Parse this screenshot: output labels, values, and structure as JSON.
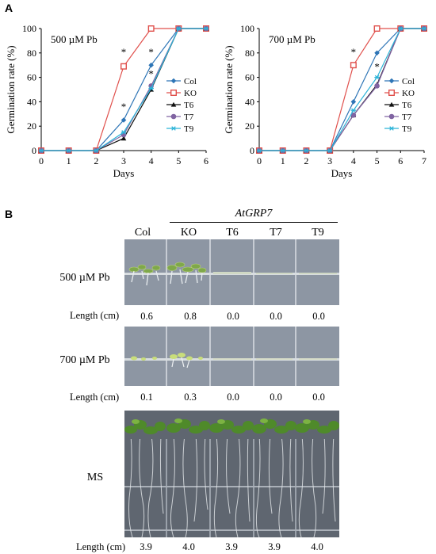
{
  "panel_a_label": "A",
  "panel_b_label": "B",
  "chart_data": [
    {
      "type": "line",
      "title": "500 µM Pb",
      "xlabel": "Days",
      "ylabel": "Germination rate (%)",
      "xlim": [
        0,
        6
      ],
      "ylim": [
        0,
        100
      ],
      "xticks": [
        "0",
        "1",
        "2",
        "3",
        "4",
        "5",
        "6"
      ],
      "yticks": [
        "0",
        "20",
        "40",
        "60",
        "80",
        "100"
      ],
      "legend_position": "right",
      "x": [
        0,
        1,
        2,
        3,
        4,
        5,
        6
      ],
      "series": [
        {
          "name": "Col",
          "values": [
            0,
            0,
            0,
            25,
            70,
            100,
            100
          ],
          "color": "#2e75b6",
          "marker": "diamond"
        },
        {
          "name": "KO",
          "values": [
            0,
            0,
            0,
            69,
            100,
            100,
            100
          ],
          "color": "#e0504c",
          "marker": "square"
        },
        {
          "name": "T6",
          "values": [
            0,
            0,
            0,
            10,
            50,
            100,
            100
          ],
          "color": "#111111",
          "marker": "triangle"
        },
        {
          "name": "T7",
          "values": [
            0,
            0,
            0,
            13,
            53,
            100,
            100
          ],
          "color": "#8064a2",
          "marker": "circle"
        },
        {
          "name": "T9",
          "values": [
            0,
            0,
            0,
            15,
            51,
            100,
            100
          ],
          "color": "#2bb3d8",
          "marker": "asterisk"
        }
      ],
      "annotations": [
        "*",
        "*",
        "*",
        "*"
      ]
    },
    {
      "type": "line",
      "title": "700 µM Pb",
      "xlabel": "Days",
      "ylabel": "Germination rate (%)",
      "xlim": [
        0,
        7
      ],
      "ylim": [
        0,
        100
      ],
      "xticks": [
        "0",
        "1",
        "2",
        "3",
        "4",
        "5",
        "6",
        "7"
      ],
      "yticks": [
        "0",
        "20",
        "40",
        "60",
        "80",
        "100"
      ],
      "legend_position": "right",
      "x": [
        0,
        1,
        2,
        3,
        4,
        5,
        6,
        7
      ],
      "series": [
        {
          "name": "Col",
          "values": [
            0,
            0,
            0,
            0,
            40,
            80,
            100,
            100
          ],
          "color": "#2e75b6",
          "marker": "diamond"
        },
        {
          "name": "KO",
          "values": [
            0,
            0,
            0,
            0,
            70,
            100,
            100,
            100
          ],
          "color": "#e0504c",
          "marker": "square"
        },
        {
          "name": "T6",
          "values": [
            0,
            0,
            0,
            0,
            29,
            54,
            100,
            100
          ],
          "color": "#111111",
          "marker": "triangle"
        },
        {
          "name": "T7",
          "values": [
            0,
            0,
            0,
            0,
            29,
            53,
            100,
            100
          ],
          "color": "#8064a2",
          "marker": "circle"
        },
        {
          "name": "T9",
          "values": [
            0,
            0,
            0,
            0,
            33,
            60,
            100,
            100
          ],
          "color": "#2bb3d8",
          "marker": "asterisk"
        }
      ],
      "annotations": [
        "*",
        "*"
      ]
    }
  ],
  "panel_b": {
    "group_label": "AtGRP7",
    "columns": [
      "Col",
      "KO",
      "T6",
      "T7",
      "T9"
    ],
    "rows": [
      {
        "condition": "500 µM Pb",
        "length_label": "Length (cm)",
        "lengths": [
          "0.6",
          "0.8",
          "0.0",
          "0.0",
          "0.0"
        ]
      },
      {
        "condition": "700 µM Pb",
        "length_label": "Length (cm)",
        "lengths": [
          "0.1",
          "0.3",
          "0.0",
          "0.0",
          "0.0"
        ]
      },
      {
        "condition": "MS",
        "length_label": "Length (cm)",
        "lengths": [
          "3.9",
          "4.0",
          "3.9",
          "3.9",
          "4.0"
        ]
      }
    ]
  }
}
